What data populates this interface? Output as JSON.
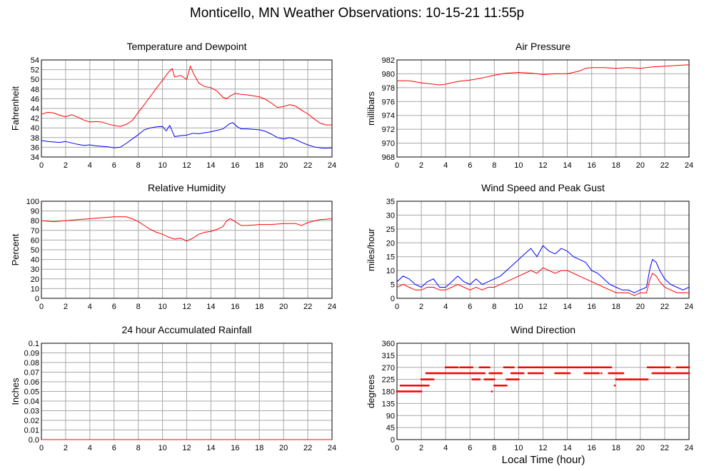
{
  "title": "Monticello, MN Weather Observations: 10-15-21 11:55p",
  "x_axis_label": "Local Time (hour)",
  "colors": {
    "red": "#ff0000",
    "blue": "#0000ff",
    "grid": "#a8a8a8"
  },
  "chart_data": [
    {
      "type": "line",
      "title": "Temperature and Dewpoint",
      "ylabel": "Fahrenheit",
      "xlim": [
        0,
        24
      ],
      "xticks": [
        0,
        2,
        4,
        6,
        8,
        10,
        12,
        14,
        16,
        18,
        20,
        22,
        24
      ],
      "ylim": [
        34,
        54
      ],
      "yticks": [
        34,
        36,
        38,
        40,
        42,
        44,
        46,
        48,
        50,
        52,
        54
      ],
      "series": [
        {
          "color": "#ff0000",
          "x": [
            0,
            0.5,
            1,
            1.5,
            2,
            2.5,
            3,
            3.5,
            4,
            4.5,
            5,
            5.5,
            6,
            6.5,
            7,
            7.5,
            8,
            8.5,
            9,
            9.5,
            10,
            10.5,
            10.8,
            11,
            11.5,
            12,
            12.3,
            12.6,
            13,
            13.5,
            14,
            14.5,
            15,
            15.3,
            15.6,
            16,
            16.5,
            17,
            17.5,
            18,
            18.5,
            19,
            19.5,
            20,
            20.5,
            21,
            21.5,
            22,
            22.5,
            23,
            23.5,
            24
          ],
          "y": [
            42.8,
            43.2,
            43.1,
            42.6,
            42.3,
            42.7,
            42.2,
            41.6,
            41.2,
            41.3,
            41.2,
            40.8,
            40.5,
            40.3,
            40.7,
            41.5,
            43.2,
            44.8,
            46.5,
            48.2,
            49.8,
            51.5,
            52.2,
            50.5,
            50.8,
            50.0,
            52.7,
            51.0,
            49.2,
            48.5,
            48.3,
            47.6,
            46.3,
            46.0,
            46.6,
            47.1,
            46.9,
            46.8,
            46.6,
            46.4,
            45.9,
            45.1,
            44.2,
            44.4,
            44.8,
            44.5,
            43.6,
            42.9,
            41.9,
            41.0,
            40.6,
            40.6
          ]
        },
        {
          "color": "#0000ff",
          "x": [
            0,
            0.5,
            1,
            1.5,
            2,
            2.5,
            3,
            3.5,
            4,
            4.5,
            5,
            5.5,
            6,
            6.5,
            7,
            7.5,
            8,
            8.5,
            9,
            9.5,
            10,
            10.3,
            10.6,
            11,
            11.5,
            12,
            12.5,
            13,
            13.5,
            14,
            14.5,
            15,
            15.5,
            15.8,
            16.2,
            16.5,
            17,
            17.5,
            18,
            18.5,
            19,
            19.5,
            20,
            20.5,
            21,
            21.5,
            22,
            22.5,
            23,
            23.5,
            24
          ],
          "y": [
            37.4,
            37.2,
            37.1,
            37.0,
            37.2,
            36.9,
            36.6,
            36.4,
            36.5,
            36.3,
            36.2,
            36.1,
            35.9,
            36.0,
            36.8,
            37.7,
            38.6,
            39.6,
            40.0,
            40.2,
            40.3,
            39.4,
            40.5,
            38.2,
            38.4,
            38.5,
            38.9,
            38.8,
            39.0,
            39.2,
            39.5,
            39.8,
            40.8,
            41.1,
            40.2,
            39.8,
            39.8,
            39.7,
            39.6,
            39.3,
            38.7,
            38.0,
            37.7,
            38.0,
            37.6,
            37.0,
            36.5,
            36.1,
            35.9,
            35.8,
            35.9
          ]
        }
      ]
    },
    {
      "type": "line",
      "title": "Air Pressure",
      "ylabel": "millibars",
      "xlim": [
        0,
        24
      ],
      "xticks": [
        0,
        2,
        4,
        6,
        8,
        10,
        12,
        14,
        16,
        18,
        20,
        22,
        24
      ],
      "ylim": [
        968,
        982
      ],
      "yticks": [
        968,
        970,
        972,
        974,
        976,
        978,
        980,
        982
      ],
      "series": [
        {
          "color": "#ff0000",
          "x": [
            0,
            1,
            2,
            3,
            3.5,
            4,
            5,
            6,
            7,
            8,
            9,
            10,
            11,
            12,
            13,
            14,
            15,
            15.5,
            16,
            17,
            18,
            19,
            20,
            21,
            22,
            23,
            24
          ],
          "y": [
            979.0,
            979.0,
            978.7,
            978.5,
            978.4,
            978.5,
            978.9,
            979.1,
            979.4,
            979.8,
            980.1,
            980.2,
            980.1,
            979.9,
            980.0,
            980.0,
            980.4,
            980.8,
            980.9,
            980.9,
            980.8,
            980.9,
            980.8,
            981.0,
            981.1,
            981.2,
            981.3
          ]
        }
      ]
    },
    {
      "type": "line",
      "title": "Relative Humidity",
      "ylabel": "Percent",
      "xlim": [
        0,
        24
      ],
      "xticks": [
        0,
        2,
        4,
        6,
        8,
        10,
        12,
        14,
        16,
        18,
        20,
        22,
        24
      ],
      "ylim": [
        0,
        100
      ],
      "yticks": [
        0,
        10,
        20,
        30,
        40,
        50,
        60,
        70,
        80,
        90,
        100
      ],
      "series": [
        {
          "color": "#ff0000",
          "x": [
            0,
            1,
            2,
            3,
            4,
            5,
            6,
            7,
            7.5,
            8,
            8.5,
            9,
            9.5,
            10,
            10.5,
            11,
            11.5,
            12,
            12.5,
            13,
            13.5,
            14,
            14.5,
            15,
            15.3,
            15.6,
            16,
            16.5,
            17,
            18,
            19,
            20,
            21,
            21.5,
            22,
            23,
            24
          ],
          "y": [
            80,
            79,
            80,
            81,
            82,
            83,
            84,
            84,
            82,
            79,
            75,
            71,
            68,
            66,
            63,
            61,
            62,
            59,
            62,
            66,
            68,
            69,
            71,
            74,
            80,
            82,
            79,
            75,
            75,
            76,
            76,
            77,
            77,
            75,
            78,
            81,
            82
          ]
        }
      ]
    },
    {
      "type": "line",
      "title": "Wind Speed and Peak Gust",
      "ylabel": "miles/hour",
      "xlim": [
        0,
        24
      ],
      "xticks": [
        0,
        2,
        4,
        6,
        8,
        10,
        12,
        14,
        16,
        18,
        20,
        22,
        24
      ],
      "ylim": [
        0,
        35
      ],
      "yticks": [
        0,
        5,
        10,
        15,
        20,
        25,
        30,
        35
      ],
      "series": [
        {
          "color": "#0000ff",
          "x": [
            0,
            0.5,
            1,
            1.5,
            2,
            2.5,
            3,
            3.5,
            4,
            4.5,
            5,
            5.5,
            6,
            6.5,
            7,
            7.5,
            8,
            8.5,
            9,
            9.5,
            10,
            10.5,
            11,
            11.5,
            12,
            12.5,
            13,
            13.5,
            14,
            14.5,
            15,
            15.5,
            16,
            16.5,
            17,
            17.5,
            18,
            18.5,
            19,
            19.5,
            20,
            20.5,
            20.8,
            21,
            21.3,
            21.6,
            22,
            22.5,
            23,
            23.5,
            24
          ],
          "y": [
            6,
            8,
            7,
            5,
            4,
            6,
            7,
            4,
            4,
            6,
            8,
            6,
            5,
            7,
            5,
            6,
            7,
            8,
            10,
            12,
            14,
            16,
            18,
            15,
            19,
            17,
            16,
            18,
            17,
            15,
            14,
            13,
            10,
            9,
            7,
            5,
            4,
            3,
            3,
            2,
            3,
            4,
            11,
            14,
            13,
            10,
            7,
            5,
            4,
            3,
            4
          ]
        },
        {
          "color": "#ff0000",
          "x": [
            0,
            0.5,
            1,
            1.5,
            2,
            2.5,
            3,
            3.5,
            4,
            4.5,
            5,
            5.5,
            6,
            6.5,
            7,
            7.5,
            8,
            8.5,
            9,
            9.5,
            10,
            10.5,
            11,
            11.5,
            12,
            12.5,
            13,
            13.5,
            14,
            14.5,
            15,
            15.5,
            16,
            16.5,
            17,
            17.5,
            18,
            18.5,
            19,
            19.5,
            20,
            20.5,
            20.8,
            21,
            21.3,
            21.6,
            22,
            22.5,
            23,
            23.5,
            24
          ],
          "y": [
            4,
            5,
            4,
            3,
            3,
            4,
            4,
            3,
            3,
            4,
            5,
            4,
            3,
            4,
            3,
            4,
            4,
            5,
            6,
            7,
            8,
            9,
            10,
            9,
            11,
            10,
            9,
            10,
            10,
            9,
            8,
            7,
            6,
            5,
            4,
            3,
            2,
            2,
            2,
            1,
            2,
            2,
            7,
            9,
            8,
            6,
            4,
            3,
            2,
            2,
            2
          ]
        }
      ]
    },
    {
      "type": "line",
      "title": "24 hour Accumulated Rainfall",
      "ylabel": "Inches",
      "xlim": [
        0,
        24
      ],
      "xticks": [
        0,
        2,
        4,
        6,
        8,
        10,
        12,
        14,
        16,
        18,
        20,
        22,
        24
      ],
      "ylim": [
        0,
        0.1
      ],
      "yticks": [
        "0.0",
        "0.01",
        "0.02",
        "0.03",
        "0.04",
        "0.05",
        "0.06",
        "0.07",
        "0.08",
        "0.09",
        "0.1"
      ],
      "series": [
        {
          "color": "#ff0000",
          "x": [
            0,
            24
          ],
          "y": [
            0,
            0
          ]
        }
      ]
    },
    {
      "type": "scatter",
      "title": "Wind Direction",
      "ylabel": "degrees",
      "xlim": [
        0,
        24
      ],
      "xticks": [
        0,
        2,
        4,
        6,
        8,
        10,
        12,
        14,
        16,
        18,
        20,
        22,
        24
      ],
      "ylim": [
        0,
        360
      ],
      "yticks": [
        0,
        45,
        90,
        135,
        180,
        225,
        270,
        315,
        360
      ],
      "series": [
        {
          "color": "#ff0000",
          "segments": [
            {
              "x0": 0.0,
              "x1": 0.9,
              "y": 180
            },
            {
              "x0": 0.3,
              "x1": 1.2,
              "y": 202
            },
            {
              "x0": 1.0,
              "x1": 2.0,
              "y": 180
            },
            {
              "x0": 1.2,
              "x1": 2.6,
              "y": 202
            },
            {
              "x0": 2.0,
              "x1": 3.0,
              "y": 225
            },
            {
              "x0": 2.4,
              "x1": 3.4,
              "y": 248
            },
            {
              "x0": 3.4,
              "x1": 4.1,
              "y": 248
            },
            {
              "x0": 4.0,
              "x1": 5.0,
              "y": 270
            },
            {
              "x0": 4.2,
              "x1": 6.0,
              "y": 248
            },
            {
              "x0": 5.2,
              "x1": 6.2,
              "y": 270
            },
            {
              "x0": 6.0,
              "x1": 7.2,
              "y": 248
            },
            {
              "x0": 6.2,
              "x1": 6.8,
              "y": 225
            },
            {
              "x0": 6.8,
              "x1": 7.6,
              "y": 270
            },
            {
              "x0": 7.2,
              "x1": 8.0,
              "y": 225
            },
            {
              "x0": 7.6,
              "x1": 8.6,
              "y": 248
            },
            {
              "x0": 8.0,
              "x1": 9.0,
              "y": 202
            },
            {
              "x0": 8.8,
              "x1": 9.6,
              "y": 270
            },
            {
              "x0": 9.0,
              "x1": 10.0,
              "y": 225
            },
            {
              "x0": 9.4,
              "x1": 10.4,
              "y": 248
            },
            {
              "x0": 10.0,
              "x1": 12.4,
              "y": 270
            },
            {
              "x0": 10.8,
              "x1": 12.0,
              "y": 248
            },
            {
              "x0": 12.4,
              "x1": 14.8,
              "y": 270
            },
            {
              "x0": 13.0,
              "x1": 14.2,
              "y": 248
            },
            {
              "x0": 14.8,
              "x1": 17.6,
              "y": 270
            },
            {
              "x0": 15.4,
              "x1": 16.6,
              "y": 248
            },
            {
              "x0": 17.4,
              "x1": 18.6,
              "y": 248
            },
            {
              "x0": 18.0,
              "x1": 19.2,
              "y": 225
            },
            {
              "x0": 19.2,
              "x1": 20.6,
              "y": 225
            },
            {
              "x0": 20.6,
              "x1": 22.4,
              "y": 270
            },
            {
              "x0": 21.0,
              "x1": 22.2,
              "y": 248
            },
            {
              "x0": 22.2,
              "x1": 24.0,
              "y": 248
            },
            {
              "x0": 23.0,
              "x1": 24.0,
              "y": 270
            }
          ],
          "points": [
            {
              "x": 7.8,
              "y": 180
            },
            {
              "x": 8.3,
              "y": 202
            },
            {
              "x": 17.9,
              "y": 202
            },
            {
              "x": 13.5,
              "y": 270
            },
            {
              "x": 16.8,
              "y": 248
            }
          ]
        }
      ]
    }
  ]
}
